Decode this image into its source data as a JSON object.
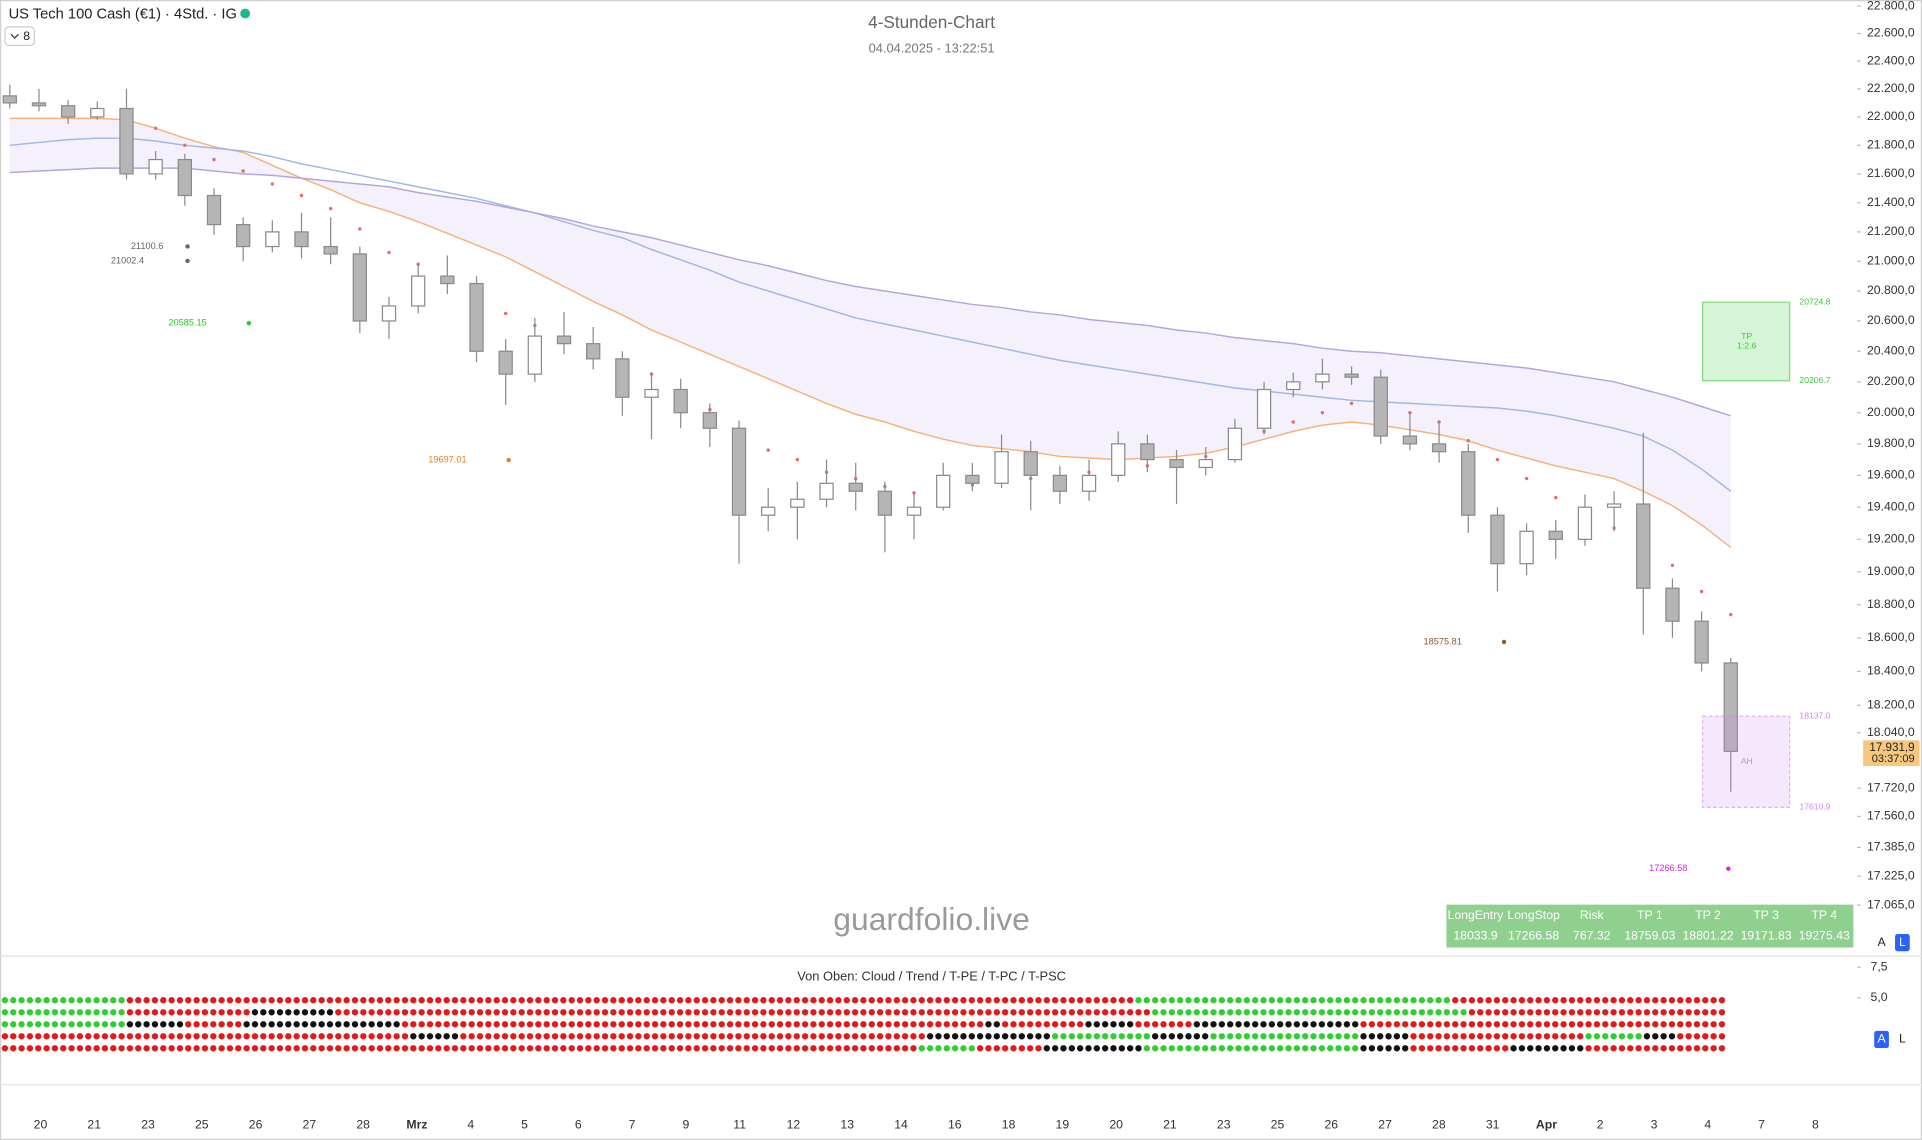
{
  "header": {
    "symbol": "US Tech 100 Cash (€1) · 4Std. · IG",
    "interval_button": "8"
  },
  "chart_data": {
    "type": "candlestick",
    "title": "4-Stunden-Chart",
    "subtitle": "04.04.2025 - 13:22:51",
    "x_labels": [
      "20",
      "21",
      "23",
      "25",
      "26",
      "27",
      "28",
      "Mrz",
      "4",
      "5",
      "6",
      "7",
      "9",
      "11",
      "12",
      "13",
      "14",
      "16",
      "18",
      "19",
      "20",
      "21",
      "23",
      "25",
      "26",
      "27",
      "28",
      "31",
      "Apr",
      "2",
      "3",
      "4",
      "7",
      "8"
    ],
    "open": [
      22150,
      22100,
      22080,
      22000,
      22060,
      21600,
      21700,
      21450,
      21250,
      21100,
      21200,
      21100,
      21050,
      20600,
      20700,
      20900,
      20850,
      20400,
      20250,
      20500,
      20450,
      20350,
      20100,
      20150,
      20000,
      19900,
      19350,
      19400,
      19450,
      19550,
      19500,
      19350,
      19400,
      19600,
      19550,
      19750,
      19600,
      19500,
      19600,
      19800,
      19700,
      19650,
      19700,
      19900,
      20150,
      20200,
      20250,
      20230,
      19850,
      19800,
      19750,
      19350,
      19050,
      19250,
      19200,
      19400,
      19420,
      18900,
      18700,
      18450
    ],
    "high": [
      22230,
      22200,
      22120,
      22110,
      22200,
      21760,
      21740,
      21500,
      21300,
      21280,
      21330,
      21300,
      21100,
      20760,
      20980,
      21040,
      20900,
      20480,
      20620,
      20660,
      20560,
      20400,
      20260,
      20220,
      20060,
      19950,
      19520,
      19560,
      19700,
      19680,
      19560,
      19480,
      19680,
      19680,
      19860,
      19820,
      19660,
      19700,
      19880,
      19860,
      19760,
      19780,
      19960,
      20200,
      20260,
      20350,
      20300,
      20280,
      20000,
      19950,
      19800,
      19400,
      19300,
      19320,
      19480,
      19500,
      19870,
      18960,
      18760,
      18480
    ],
    "low": [
      22060,
      22040,
      21950,
      21980,
      21560,
      21560,
      21380,
      21180,
      21000,
      21060,
      21020,
      20980,
      20520,
      20480,
      20650,
      20780,
      20330,
      20050,
      20200,
      20380,
      20280,
      19980,
      19830,
      19900,
      19780,
      19050,
      19250,
      19200,
      19400,
      19380,
      19120,
      19200,
      19380,
      19500,
      19520,
      19380,
      19420,
      19440,
      19560,
      19620,
      19420,
      19600,
      19680,
      19860,
      20100,
      20150,
      20180,
      19800,
      19760,
      19680,
      19240,
      18880,
      18980,
      19080,
      19160,
      19250,
      18620,
      18600,
      18400,
      17700
    ],
    "close": [
      22100,
      22080,
      22000,
      22060,
      21600,
      21700,
      21450,
      21250,
      21100,
      21200,
      21100,
      21050,
      20600,
      20700,
      20900,
      20850,
      20400,
      20250,
      20500,
      20450,
      20350,
      20100,
      20150,
      20000,
      19900,
      19350,
      19400,
      19450,
      19550,
      19500,
      19350,
      19400,
      19600,
      19550,
      19750,
      19600,
      19500,
      19600,
      19800,
      19700,
      19650,
      19700,
      19900,
      20150,
      20200,
      20250,
      20230,
      19850,
      19800,
      19750,
      19350,
      19050,
      19250,
      19200,
      19400,
      19420,
      18900,
      18700,
      18450,
      17931.9
    ],
    "up_color": "#ffffff",
    "down_color": "#b5b5b5",
    "wick_color": "#8a8a8a",
    "overlays": [
      {
        "color": "#f5b27a",
        "values": [
          21990,
          21990,
          21990,
          21990,
          21980,
          21920,
          21850,
          21790,
          21750,
          21660,
          21570,
          21490,
          21400,
          21340,
          21270,
          21190,
          21110,
          21030,
          20930,
          20830,
          20730,
          20640,
          20540,
          20460,
          20380,
          20300,
          20220,
          20140,
          20060,
          19990,
          19940,
          19880,
          19830,
          19790,
          19770,
          19750,
          19720,
          19710,
          19700,
          19710,
          19720,
          19740,
          19780,
          19830,
          19880,
          19920,
          19940,
          19920,
          19890,
          19860,
          19820,
          19760,
          19710,
          19660,
          19620,
          19580,
          19500,
          19410,
          19290,
          19150
        ]
      },
      {
        "color": "#9fb8e6",
        "values": [
          21800,
          21820,
          21840,
          21850,
          21850,
          21830,
          21800,
          21780,
          21760,
          21720,
          21670,
          21630,
          21590,
          21550,
          21510,
          21470,
          21430,
          21380,
          21330,
          21270,
          21210,
          21160,
          21080,
          21010,
          20940,
          20860,
          20800,
          20740,
          20680,
          20620,
          20580,
          20540,
          20500,
          20460,
          20420,
          20380,
          20340,
          20310,
          20280,
          20250,
          20220,
          20190,
          20160,
          20140,
          20120,
          20100,
          20080,
          20070,
          20060,
          20050,
          20040,
          20030,
          20010,
          19980,
          19940,
          19900,
          19850,
          19760,
          19640,
          19500
        ]
      },
      {
        "color": "#b3a6dc",
        "values": [
          21610,
          21620,
          21630,
          21640,
          21640,
          21640,
          21640,
          21620,
          21600,
          21590,
          21570,
          21550,
          21530,
          21510,
          21470,
          21440,
          21410,
          21370,
          21330,
          21290,
          21240,
          21200,
          21160,
          21110,
          21060,
          21010,
          20970,
          20920,
          20870,
          20830,
          20800,
          20770,
          20740,
          20710,
          20690,
          20660,
          20640,
          20610,
          20590,
          20570,
          20540,
          20520,
          20490,
          20470,
          20450,
          20420,
          20400,
          20390,
          20370,
          20350,
          20330,
          20310,
          20290,
          20260,
          20230,
          20200,
          20150,
          20100,
          20040,
          19980
        ]
      }
    ],
    "cloud_color": "#f3eefb",
    "trailing_stop": {
      "color": "#e07070",
      "values": [
        null,
        null,
        null,
        null,
        21990,
        21920,
        21800,
        21700,
        21620,
        21530,
        21450,
        21360,
        21220,
        21060,
        20980,
        20860,
        20730,
        20650,
        20570,
        20490,
        20410,
        20330,
        20250,
        20140,
        20020,
        19860,
        19760,
        19700,
        19620,
        19580,
        19530,
        19490,
        19500,
        19540,
        19580,
        19580,
        19590,
        19620,
        19640,
        19660,
        19680,
        19720,
        19800,
        19880,
        19940,
        20000,
        20060,
        20040,
        20000,
        19940,
        19820,
        19700,
        19580,
        19460,
        19350,
        19270,
        19150,
        19040,
        18880,
        18740
      ]
    },
    "ylim": [
      16800,
      22845
    ],
    "log_scale": true,
    "grid": false,
    "yticks": [
      {
        "value": 22800,
        "label": "22.800,0"
      },
      {
        "value": 22600,
        "label": "22.600,0"
      },
      {
        "value": 22400,
        "label": "22.400,0"
      },
      {
        "value": 22200,
        "label": "22.200,0"
      },
      {
        "value": 22000,
        "label": "22.000,0"
      },
      {
        "value": 21800,
        "label": "21.800,0"
      },
      {
        "value": 21600,
        "label": "21.600,0"
      },
      {
        "value": 21400,
        "label": "21.400,0"
      },
      {
        "value": 21200,
        "label": "21.200,0"
      },
      {
        "value": 21000,
        "label": "21.000,0"
      },
      {
        "value": 20800,
        "label": "20.800,0"
      },
      {
        "value": 20600,
        "label": "20.600,0"
      },
      {
        "value": 20400,
        "label": "20.400,0"
      },
      {
        "value": 20200,
        "label": "20.200,0"
      },
      {
        "value": 20000,
        "label": "20.000,0"
      },
      {
        "value": 19800,
        "label": "19.800,0"
      },
      {
        "value": 19600,
        "label": "19.600,0"
      },
      {
        "value": 19400,
        "label": "19.400,0"
      },
      {
        "value": 19200,
        "label": "19.200,0"
      },
      {
        "value": 19000,
        "label": "19.000,0"
      },
      {
        "value": 18800,
        "label": "18.800,0"
      },
      {
        "value": 18600,
        "label": "18.600,0"
      },
      {
        "value": 18400,
        "label": "18.400,0"
      },
      {
        "value": 18200,
        "label": "18.200,0"
      },
      {
        "value": 18040,
        "label": "18.040,0"
      },
      {
        "value": 17720,
        "label": "17.720,0"
      },
      {
        "value": 17560,
        "label": "17.560,0"
      },
      {
        "value": 17385,
        "label": "17.385,0"
      },
      {
        "value": 17225,
        "label": "17.225,0"
      },
      {
        "value": 17065,
        "label": "17.065,0"
      }
    ],
    "last_price": {
      "value": 17931.9,
      "label": "17.931,9",
      "countdown": "03:37:09",
      "color": "#f8c77e"
    },
    "levels": [
      {
        "value": 21100.6,
        "color": "#666666"
      },
      {
        "value": 21002.4,
        "color": "#666666"
      },
      {
        "value": 20585.15,
        "color": "#22cc22"
      },
      {
        "value": 19697.01,
        "color": "#e67e22"
      },
      {
        "value": 18575.81,
        "color": "#8b5a2b"
      },
      {
        "value": 17266.58,
        "color": "#dd22dd"
      }
    ],
    "zones": [
      {
        "top": {
          "value": 20724.8,
          "label": "20724.8"
        },
        "bottom": {
          "value": 20206.7,
          "label": "20206.7"
        },
        "text": [
          "TP",
          "1:2.6"
        ],
        "color": "#33cc33"
      },
      {
        "top": {
          "value": 18137.0,
          "label": "18137.0"
        },
        "bottom": {
          "value": 17610.9,
          "label": "17610.9"
        },
        "text": [
          "AH"
        ],
        "color": "#cc88ee"
      }
    ],
    "watermark": "guardfolio.live",
    "trade_table": {
      "headers": [
        "LongEntry",
        "LongStop",
        "Risk",
        "TP 1",
        "TP 2",
        "TP 3",
        "TP 4"
      ],
      "values": [
        18033.9,
        17266.58,
        767.32,
        18759.03,
        18801.22,
        19171.83,
        19275.43
      ],
      "color": "#8fd08f"
    },
    "scale_buttons": [
      "A",
      "L"
    ]
  },
  "indicator": {
    "title": "Von Oben: Cloud / Trend / T-PE / T-PC / T-PSC",
    "ylim": [
      -1.6,
      8.2
    ],
    "yticks": [
      {
        "value": 7.5,
        "label": "7,5"
      },
      {
        "value": 5,
        "label": "5,0"
      }
    ],
    "rows": [
      {
        "runs": [
          {
            "color": "#33cc33",
            "count": 15
          },
          {
            "color": "#e01b1b",
            "count": 121
          },
          {
            "color": "#33cc33",
            "count": 38
          },
          {
            "color": "#e01b1b",
            "count": 33
          }
        ]
      },
      {
        "runs": [
          {
            "color": "#33cc33",
            "count": 15
          },
          {
            "color": "#e01b1b",
            "count": 15
          },
          {
            "color": "#111111",
            "count": 10
          },
          {
            "color": "#e01b1b",
            "count": 98
          },
          {
            "color": "#33cc33",
            "count": 38
          },
          {
            "color": "#e01b1b",
            "count": 31
          }
        ]
      },
      {
        "runs": [
          {
            "color": "#33cc33",
            "count": 15
          },
          {
            "color": "#111111",
            "count": 7
          },
          {
            "color": "#e01b1b",
            "count": 7
          },
          {
            "color": "#111111",
            "count": 19
          },
          {
            "color": "#e01b1b",
            "count": 70
          },
          {
            "color": "#111111",
            "count": 2
          },
          {
            "color": "#e01b1b",
            "count": 10
          },
          {
            "color": "#111111",
            "count": 6
          },
          {
            "color": "#e01b1b",
            "count": 7
          },
          {
            "color": "#111111",
            "count": 20
          },
          {
            "color": "#e01b1b",
            "count": 44
          }
        ]
      },
      {
        "runs": [
          {
            "color": "#e01b1b",
            "count": 49
          },
          {
            "color": "#111111",
            "count": 6
          },
          {
            "color": "#e01b1b",
            "count": 56
          },
          {
            "color": "#111111",
            "count": 15
          },
          {
            "color": "#33cc33",
            "count": 12
          },
          {
            "color": "#111111",
            "count": 7
          },
          {
            "color": "#33cc33",
            "count": 18
          },
          {
            "color": "#111111",
            "count": 6
          },
          {
            "color": "#e01b1b",
            "count": 21
          },
          {
            "color": "#33cc33",
            "count": 7
          },
          {
            "color": "#111111",
            "count": 4
          },
          {
            "color": "#e01b1b",
            "count": 6
          }
        ]
      },
      {
        "runs": [
          {
            "color": "#e01b1b",
            "count": 110
          },
          {
            "color": "#33cc33",
            "count": 7
          },
          {
            "color": "#e01b1b",
            "count": 8
          },
          {
            "color": "#111111",
            "count": 12
          },
          {
            "color": "#33cc33",
            "count": 26
          },
          {
            "color": "#111111",
            "count": 6
          },
          {
            "color": "#e01b1b",
            "count": 12
          },
          {
            "color": "#111111",
            "count": 9
          },
          {
            "color": "#e01b1b",
            "count": 17
          }
        ]
      }
    ]
  }
}
